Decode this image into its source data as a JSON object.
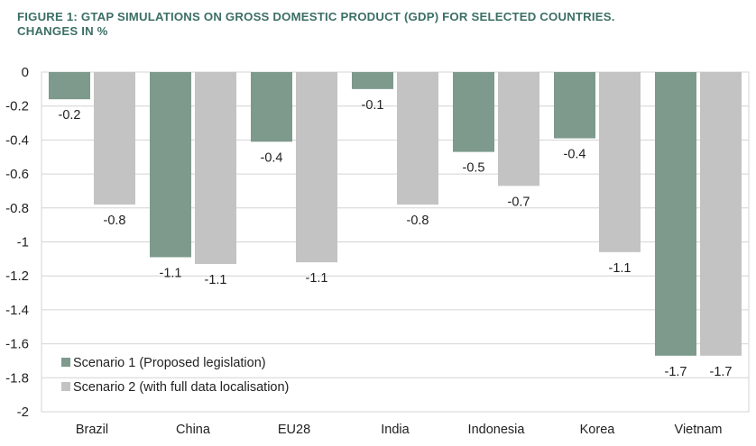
{
  "title": {
    "line1": "FIGURE 1: GTAP SIMULATIONS ON GROSS DOMESTIC PRODUCT (GDP) FOR SELECTED COUNTRIES.",
    "line2": "CHANGES IN %"
  },
  "colors": {
    "series1": "#7d9a8c",
    "series2": "#c3c3c3",
    "grid": "#d4d4d4",
    "title": "#3c6f65"
  },
  "chart_data": {
    "type": "bar",
    "categories": [
      "Brazil",
      "China",
      "EU28",
      "India",
      "Indonesia",
      "Korea",
      "Vietnam"
    ],
    "series": [
      {
        "name": "Scenario 1 (Proposed legislation)",
        "values": [
          -0.16,
          -1.09,
          -0.41,
          -0.1,
          -0.47,
          -0.39,
          -1.67
        ],
        "labels": [
          "-0.2",
          "-1.1",
          "-0.4",
          "-0.1",
          "-0.5",
          "-0.4",
          "-1.7"
        ]
      },
      {
        "name": "Scenario 2 (with full data localisation)",
        "values": [
          -0.78,
          -1.13,
          -1.12,
          -0.78,
          -0.67,
          -1.06,
          -1.67
        ],
        "labels": [
          "-0.8",
          "-1.1",
          "-1.1",
          "-0.8",
          "-0.7",
          "-1.1",
          "-1.7"
        ]
      }
    ],
    "ylim": [
      -2,
      0
    ],
    "yticks": [
      "0",
      "-0.2",
      "-0.4",
      "-0.6",
      "-0.8",
      "-1",
      "-1.2",
      "-1.4",
      "-1.6",
      "-1.8",
      "-2"
    ],
    "grid": true,
    "legend_position": "bottom-left"
  }
}
